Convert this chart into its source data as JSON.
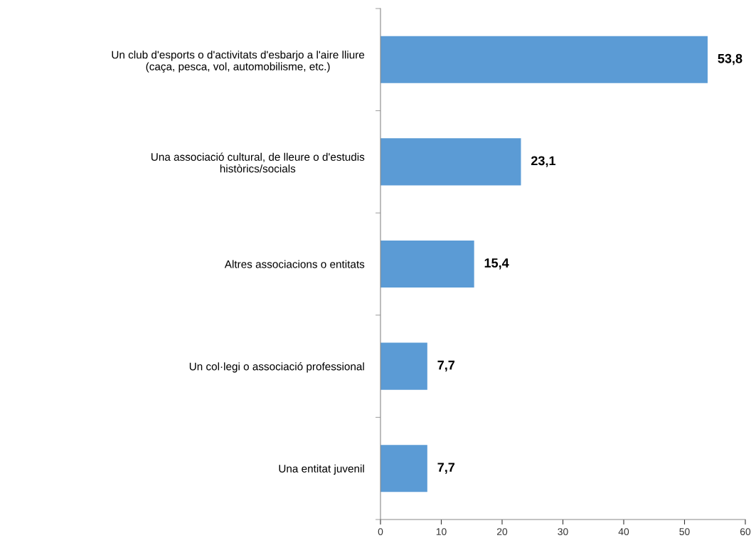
{
  "chart_data": {
    "type": "bar",
    "orientation": "horizontal",
    "categories": [
      "Un club d'esports o d'activitats d'esbarjo a l'aire lliure\n(caça, pesca, vol, automobilisme, etc.)",
      "Una associació cultural, de lleure o d'estudis\nhistòrics/socials",
      "Altres associacions o entitats",
      "Un col·legi o associació professional",
      "Una entitat juvenil"
    ],
    "values": [
      53.8,
      23.1,
      15.4,
      7.7,
      7.7
    ],
    "value_labels": [
      "53,8",
      "23,1",
      "15,4",
      "7,7",
      "7,7"
    ],
    "color": "#5b9bd5",
    "xlim": [
      0,
      60
    ],
    "xticks": [
      0,
      10,
      20,
      30,
      40,
      50,
      60
    ],
    "grid": false,
    "legend": false
  }
}
